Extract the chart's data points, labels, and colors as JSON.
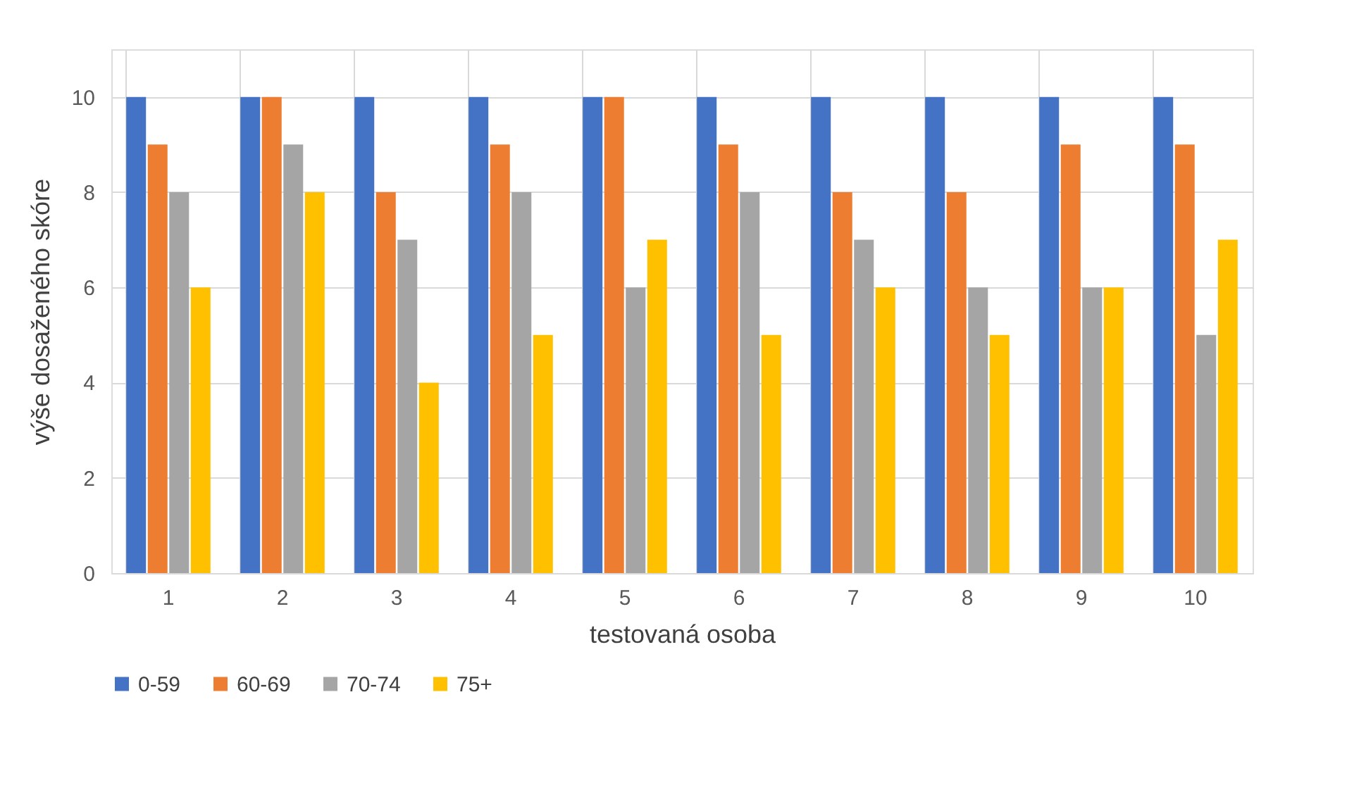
{
  "chart_data": {
    "type": "bar",
    "xlabel": "testovaná osoba",
    "ylabel": "výše dosaženého skóre",
    "categories": [
      "1",
      "2",
      "3",
      "4",
      "5",
      "6",
      "7",
      "8",
      "9",
      "10"
    ],
    "series": [
      {
        "name": "0-59",
        "color": "#4472c4",
        "values": [
          10,
          10,
          10,
          10,
          10,
          10,
          10,
          10,
          10,
          10
        ]
      },
      {
        "name": "60-69",
        "color": "#ed7d31",
        "values": [
          9,
          10,
          8,
          9,
          10,
          9,
          8,
          8,
          9,
          9
        ]
      },
      {
        "name": "70-74",
        "color": "#a5a5a5",
        "values": [
          8,
          9,
          7,
          8,
          6,
          8,
          7,
          6,
          6,
          5
        ]
      },
      {
        "name": "75+",
        "color": "#ffc000",
        "values": [
          6,
          8,
          4,
          5,
          7,
          5,
          6,
          5,
          6,
          7
        ]
      }
    ],
    "ylim": [
      0,
      11
    ],
    "yticks": [
      0,
      2,
      4,
      6,
      8,
      10
    ],
    "grid": true,
    "legend": "bottom"
  }
}
